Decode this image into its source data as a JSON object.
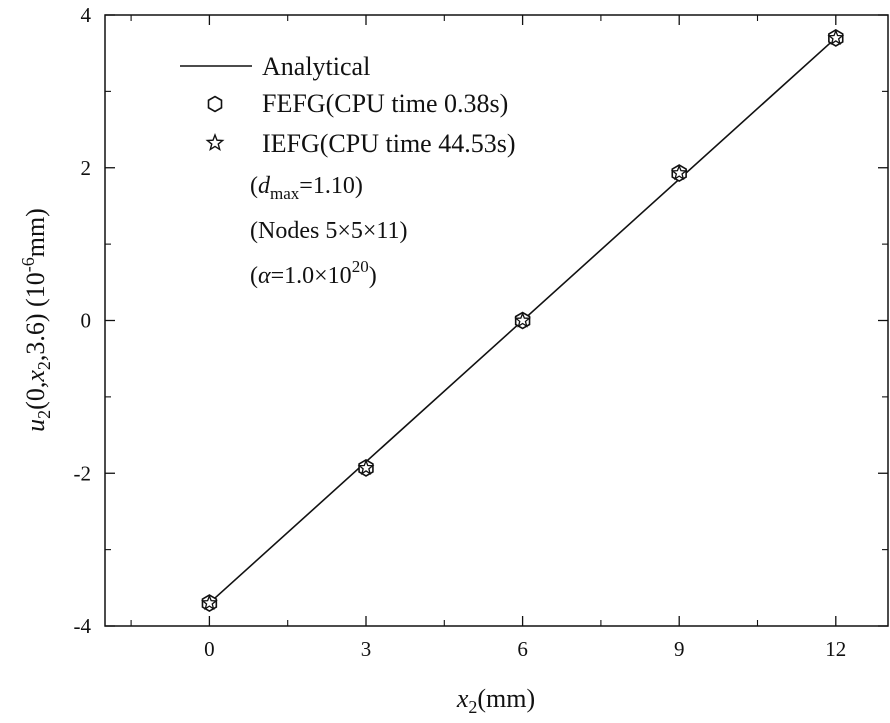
{
  "chart_data": {
    "type": "line",
    "title": "",
    "xlabel": {
      "base": "x",
      "sub": "2",
      "unit": "(mm)"
    },
    "ylabel": {
      "var": "u",
      "sub": "2",
      "args_pre": "(0,",
      "arg_var": "x",
      "arg_sub": "2",
      "args_post": ",3.6)",
      "unit_pre": " (10",
      "unit_exp": "-6",
      "unit_post": "mm)"
    },
    "xlim": [
      -2,
      13
    ],
    "ylim": [
      -4,
      4
    ],
    "xticks": [
      0,
      3,
      6,
      9,
      12
    ],
    "xtick_labels": [
      "0",
      "3",
      "6",
      "9",
      "12"
    ],
    "yticks": [
      -4,
      -2,
      0,
      2,
      4
    ],
    "ytick_labels": [
      "-4",
      "-2",
      "0",
      "2",
      "4"
    ],
    "grid": false,
    "legend_position": "top-left",
    "series": [
      {
        "name": "Analytical",
        "kind": "line",
        "x": [
          0,
          12
        ],
        "y": [
          -3.7,
          3.7
        ]
      },
      {
        "name": "FEFG(CPU time 0.38s)",
        "kind": "marker-hexagon",
        "x": [
          0,
          3,
          6,
          9,
          12
        ],
        "y": [
          -3.7,
          -1.93,
          0.0,
          1.93,
          3.7
        ]
      },
      {
        "name": "IEFG(CPU time 44.53s)",
        "kind": "marker-star",
        "x": [
          0,
          3,
          6,
          9,
          12
        ],
        "y": [
          -3.7,
          -1.93,
          0.0,
          1.93,
          3.7
        ]
      }
    ],
    "annotations": {
      "dmax": {
        "open": "(",
        "var": "d",
        "sub": "max",
        "rest": "=1.10)"
      },
      "nodes": "(Nodes 5×5×11)",
      "alpha": {
        "open": "(",
        "var": "α",
        "mid": "=1.0×10",
        "exp": "20",
        "close": ")"
      }
    }
  },
  "colors": {
    "line": "#111111",
    "axis": "#111111",
    "background": "#ffffff"
  }
}
